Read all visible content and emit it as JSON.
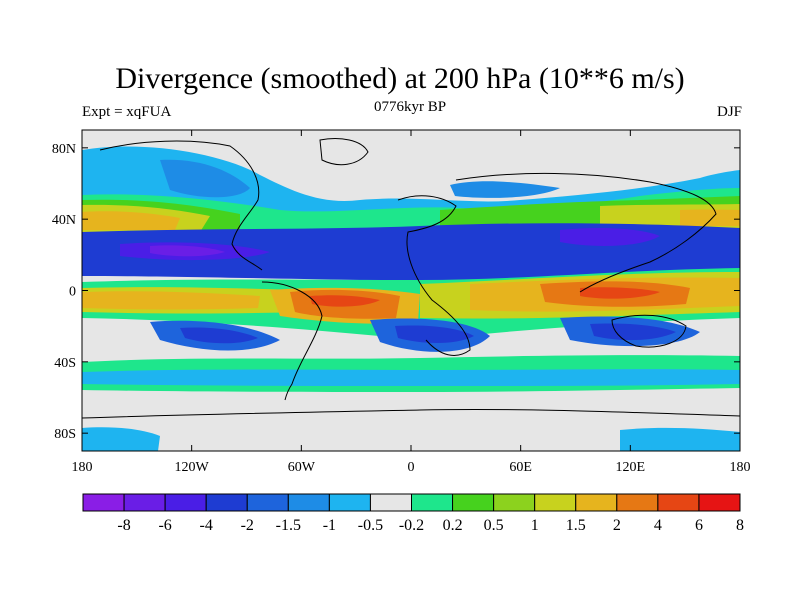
{
  "title": "Divergence (smoothed) at 200 hPa (10**6 m/s)",
  "experiment": "Expt = xqFUA",
  "period": "0776kyr BP",
  "season": "DJF",
  "map": {
    "projection": "cylindrical equidistant",
    "lon_range": [
      -180,
      180
    ],
    "lat_range": [
      -90,
      90
    ],
    "background": "#e6e6e6",
    "lat_ticks": [
      {
        "value": 80,
        "label": "80N"
      },
      {
        "value": 40,
        "label": "40N"
      },
      {
        "value": 0,
        "label": "0"
      },
      {
        "value": -40,
        "label": "40S"
      },
      {
        "value": -80,
        "label": "80S"
      }
    ],
    "lon_ticks": [
      {
        "value": -180,
        "label": "180"
      },
      {
        "value": -120,
        "label": "120W"
      },
      {
        "value": -60,
        "label": "60W"
      },
      {
        "value": 0,
        "label": "0"
      },
      {
        "value": 60,
        "label": "60E"
      },
      {
        "value": 120,
        "label": "120E"
      },
      {
        "value": 180,
        "label": "180"
      }
    ]
  },
  "colorbar": {
    "colors": [
      "#8a1ee6",
      "#6a1ee6",
      "#4a1ee6",
      "#1e3cd2",
      "#1e64dc",
      "#1e8ce6",
      "#1eb4f0",
      "#e6e6e6",
      "#1ee68c",
      "#46d21e",
      "#8cd21e",
      "#c8d21e",
      "#e6b41e",
      "#e67814",
      "#e64614",
      "#e61414"
    ],
    "labels": [
      "-8",
      "-6",
      "-4",
      "-2",
      "-1.5",
      "-1",
      "-0.5",
      "-0.2",
      "0.2",
      "0.5",
      "1",
      "1.5",
      "2",
      "4",
      "6",
      "8"
    ]
  }
}
